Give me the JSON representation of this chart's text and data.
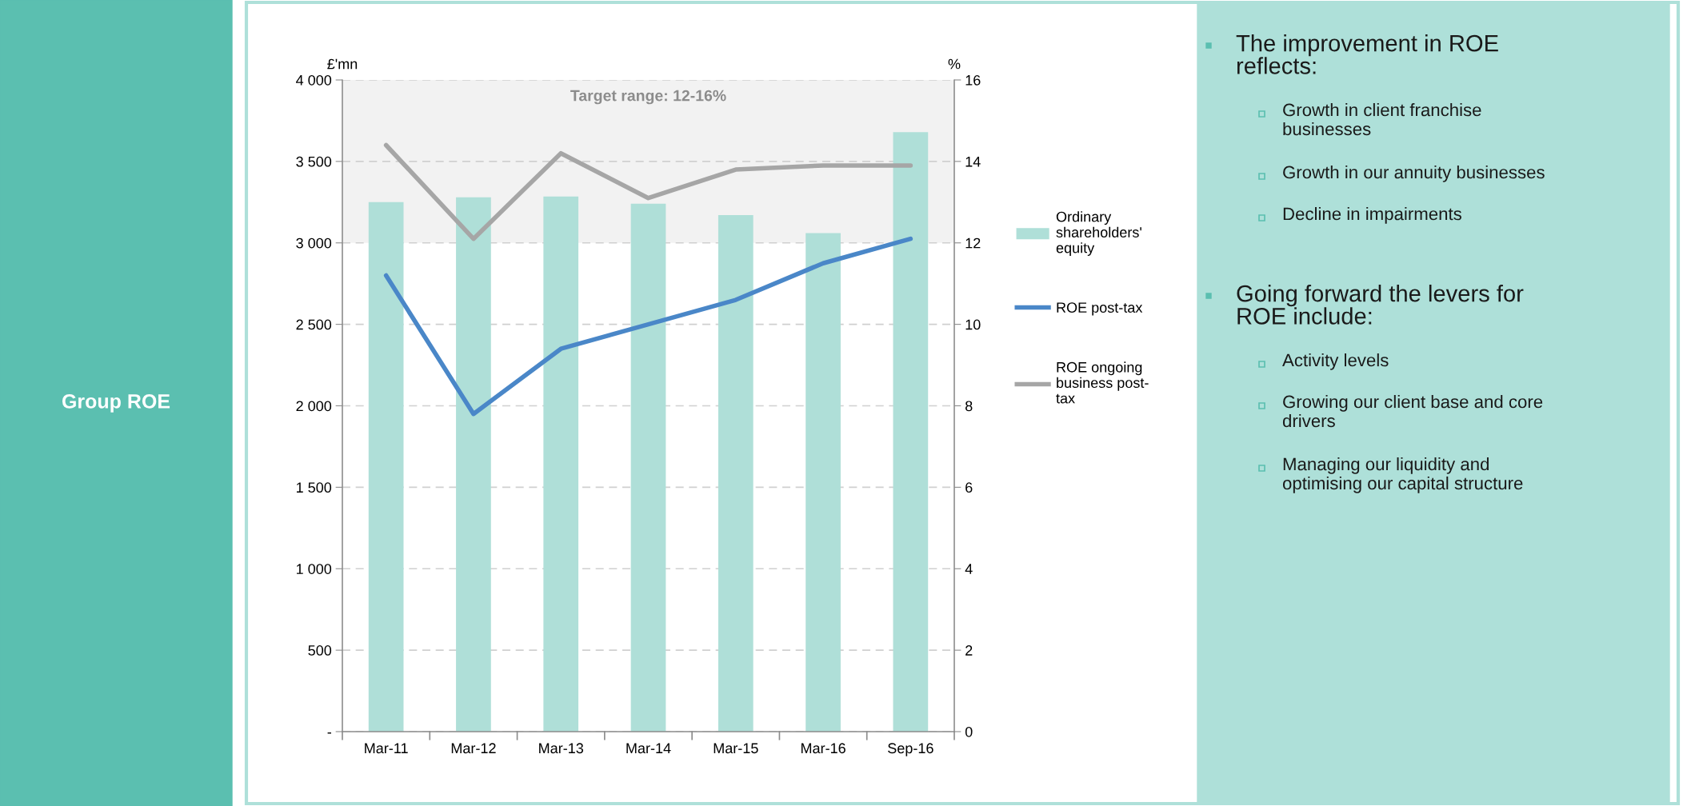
{
  "chart_data": {
    "type": "bar",
    "categories": [
      "Mar-11",
      "Mar-12",
      "Mar-13",
      "Mar-14",
      "Mar-15",
      "Mar-16",
      "Sep-16"
    ],
    "series": [
      {
        "name": "Ordinary\nshareholders'\nequity",
        "color": "#afdfd8",
        "values": [
          3250,
          3280,
          3285,
          3240,
          3170,
          3060,
          3680
        ]
      },
      {
        "name": "ROE post-tax",
        "type": "line",
        "axis": "y2",
        "color": "#4a87c8",
        "values": [
          11.2,
          7.8,
          9.4,
          10.0,
          10.6,
          11.5,
          12.1
        ]
      },
      {
        "name": "ROE ongoing\nbusiness post-\ntax",
        "type": "line",
        "axis": "y2",
        "color": "#a6a6a6",
        "values": [
          14.4,
          12.1,
          14.2,
          13.1,
          13.8,
          13.9,
          13.9
        ]
      }
    ],
    "ylabel": "£'mn",
    "y2label": "%",
    "ylim": [
      0,
      4000
    ],
    "yticks": [
      {
        "value": 0,
        "label": "-"
      },
      500,
      {
        "value": 1000,
        "label": "1 000"
      },
      {
        "value": 1500,
        "label": "1 500"
      },
      {
        "value": 2000,
        "label": "2 000"
      },
      {
        "value": 2500,
        "label": "2 500"
      },
      {
        "value": 3000,
        "label": "3 000"
      },
      {
        "value": 3500,
        "label": "3 500"
      },
      {
        "value": 4000,
        "label": "4 000"
      }
    ],
    "y2lim": [
      0,
      16
    ],
    "y2ticks": [
      0,
      2,
      4,
      6,
      8,
      10,
      12,
      14,
      16
    ],
    "bands": [
      {
        "axis": "y2",
        "from": 12,
        "to": 16,
        "label": "Target range: 12-16%",
        "color": "#f2f2f2"
      }
    ],
    "grid": "y",
    "legend": "right",
    "marker": "none",
    "line_style": "solid",
    "annotations": [
      "Group ROE",
      "The improvement in ROE\nreflects:",
      "Growth in client franchise\nbusinesses",
      "Growth in our annuity businesses",
      "Decline in impairments",
      "Going forward the levers for\nROE include:",
      "Activity levels",
      "Growing our client base and core\ndrivers",
      "Managing our liquidity and\noptimising our capital structure"
    ]
  }
}
